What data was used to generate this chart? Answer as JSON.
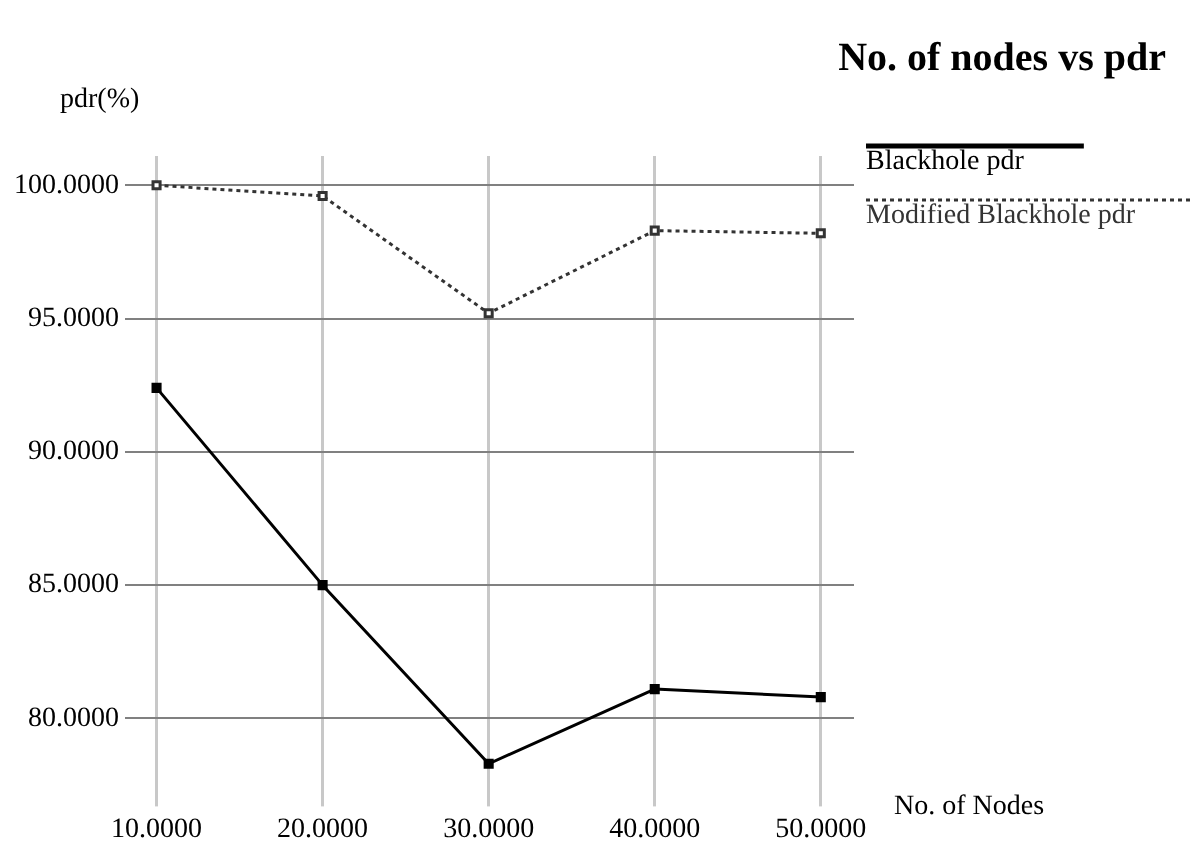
{
  "chart_data": {
    "type": "line",
    "title": "No. of nodes vs pdr",
    "xlabel": "No. of Nodes",
    "ylabel": "pdr(%)",
    "x": [
      10,
      20,
      30,
      40,
      50
    ],
    "series": [
      {
        "name": "Blackhole pdr",
        "color": "#000000",
        "values": [
          92.4,
          85.0,
          78.3,
          81.1,
          80.8
        ],
        "line_style": "solid"
      },
      {
        "name": "Modified Blackhole pdr",
        "color": "#333333",
        "values": [
          100.0,
          99.6,
          95.2,
          98.3,
          98.2
        ],
        "line_style": "dotted"
      }
    ],
    "xlim": [
      8.1,
      52
    ],
    "xticks": [
      {
        "value": 10,
        "label": "10.0000"
      },
      {
        "value": 20,
        "label": "20.0000"
      },
      {
        "value": 30,
        "label": "30.0000"
      },
      {
        "value": 40,
        "label": "40.0000"
      },
      {
        "value": 50,
        "label": "50.0000"
      }
    ],
    "ylim": [
      77.3,
      101.1
    ],
    "yticks": [
      {
        "value": 80,
        "label": "80.0000"
      },
      {
        "value": 85,
        "label": "85.0000"
      },
      {
        "value": 90,
        "label": "90.0000"
      },
      {
        "value": 95,
        "label": "95.0000"
      },
      {
        "value": 100,
        "label": "100.0000"
      }
    ],
    "grid": true,
    "legend": "top right",
    "marker": "square"
  }
}
